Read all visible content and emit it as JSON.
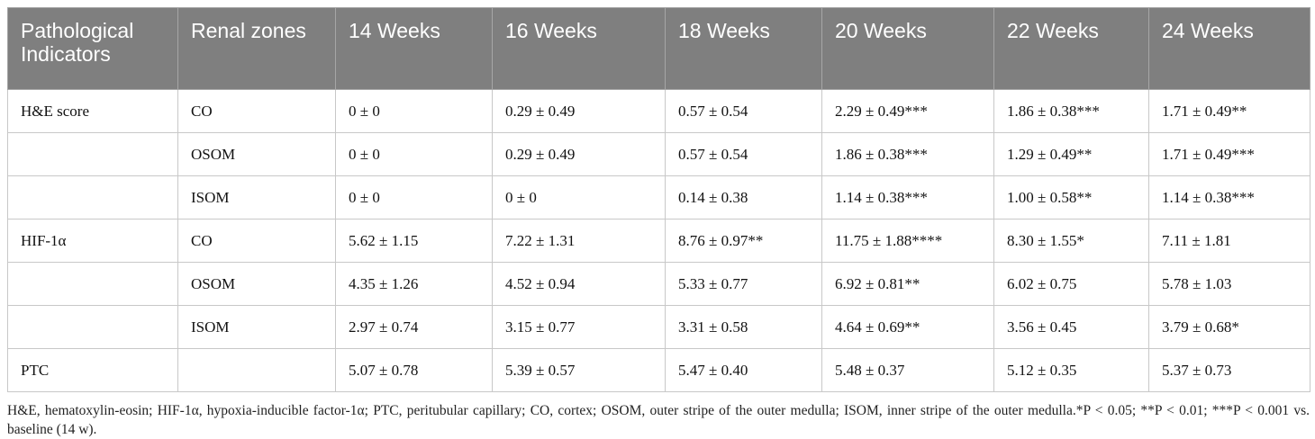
{
  "table": {
    "headers": [
      "Pathological Indicators",
      "Renal zones",
      "14 Weeks",
      "16 Weeks",
      "18 Weeks",
      "20 Weeks",
      "22 Weeks",
      "24 Weeks"
    ],
    "rows": [
      [
        "H&E score",
        "CO",
        "0 ± 0",
        "0.29 ± 0.49",
        "0.57 ± 0.54",
        "2.29 ± 0.49***",
        "1.86 ± 0.38***",
        "1.71 ± 0.49**"
      ],
      [
        "",
        "OSOM",
        "0 ± 0",
        "0.29 ± 0.49",
        "0.57 ± 0.54",
        "1.86 ± 0.38***",
        "1.29 ± 0.49**",
        "1.71 ± 0.49***"
      ],
      [
        "",
        "ISOM",
        "0 ± 0",
        "0 ± 0",
        "0.14 ± 0.38",
        "1.14 ± 0.38***",
        "1.00 ± 0.58**",
        "1.14 ± 0.38***"
      ],
      [
        "HIF-1α",
        "CO",
        "5.62 ± 1.15",
        "7.22 ± 1.31",
        "8.76 ± 0.97**",
        "11.75 ± 1.88****",
        "8.30 ± 1.55*",
        "7.11 ± 1.81"
      ],
      [
        "",
        "OSOM",
        "4.35 ± 1.26",
        "4.52 ± 0.94",
        "5.33 ± 0.77",
        "6.92 ± 0.81**",
        "6.02 ± 0.75",
        "5.78 ± 1.03"
      ],
      [
        "",
        "ISOM",
        "2.97 ± 0.74",
        "3.15 ± 0.77",
        "3.31 ± 0.58",
        "4.64 ± 0.69**",
        "3.56 ± 0.45",
        "3.79 ± 0.68*"
      ],
      [
        "PTC",
        "",
        "5.07 ± 0.78",
        "5.39 ± 0.57",
        "5.47 ± 0.40",
        "5.48 ± 0.37",
        "5.12 ± 0.35",
        "5.37 ± 0.73"
      ]
    ]
  },
  "footnote": "H&E, hematoxylin-eosin; HIF-1α, hypoxia-inducible factor-1α; PTC, peritubular capillary; CO, cortex; OSOM, outer stripe of the outer medulla; ISOM, inner stripe of the outer medulla.*P < 0.05; **P < 0.01; ***P < 0.001 vs. baseline (14 w)."
}
